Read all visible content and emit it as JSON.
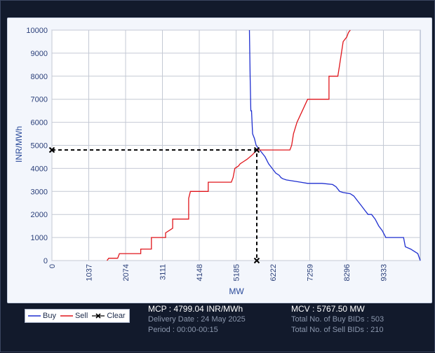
{
  "chart_data": {
    "type": "line",
    "xlabel": "MW",
    "ylabel": "INR/MWh",
    "xlim": [
      0,
      10370
    ],
    "ylim": [
      0,
      10000
    ],
    "x_ticks": [
      "0",
      "1037",
      "2074",
      "3111",
      "4148",
      "5185",
      "6222",
      "7259",
      "8296",
      "9333"
    ],
    "y_ticks": [
      "0",
      "1000",
      "2000",
      "3000",
      "4000",
      "5000",
      "6000",
      "7000",
      "8000",
      "9000",
      "10000"
    ],
    "grid": true,
    "legend_position": "bottom-left",
    "series": [
      {
        "name": "Buy",
        "color": "#1f2fd0",
        "points": [
          [
            5560,
            10000
          ],
          [
            5580,
            8000
          ],
          [
            5600,
            6500
          ],
          [
            5620,
            6500
          ],
          [
            5650,
            5500
          ],
          [
            5700,
            5300
          ],
          [
            5750,
            5000
          ],
          [
            5800,
            4900
          ],
          [
            5850,
            4800
          ],
          [
            5900,
            4700
          ],
          [
            6000,
            4500
          ],
          [
            6100,
            4200
          ],
          [
            6200,
            4000
          ],
          [
            6300,
            3800
          ],
          [
            6400,
            3700
          ],
          [
            6450,
            3600
          ],
          [
            6500,
            3550
          ],
          [
            6600,
            3500
          ],
          [
            6800,
            3450
          ],
          [
            7000,
            3400
          ],
          [
            7200,
            3350
          ],
          [
            7600,
            3350
          ],
          [
            7900,
            3300
          ],
          [
            8000,
            3200
          ],
          [
            8100,
            3000
          ],
          [
            8200,
            2950
          ],
          [
            8400,
            2900
          ],
          [
            8500,
            2800
          ],
          [
            8600,
            2600
          ],
          [
            8700,
            2400
          ],
          [
            8800,
            2200
          ],
          [
            8900,
            2000
          ],
          [
            9000,
            2000
          ],
          [
            9100,
            1800
          ],
          [
            9200,
            1500
          ],
          [
            9300,
            1300
          ],
          [
            9400,
            1000
          ],
          [
            9500,
            1000
          ],
          [
            9700,
            1000
          ],
          [
            9900,
            1000
          ],
          [
            9950,
            600
          ],
          [
            10100,
            500
          ],
          [
            10200,
            400
          ],
          [
            10300,
            300
          ],
          [
            10370,
            0
          ]
        ]
      },
      {
        "name": "Sell",
        "color": "#e0161c",
        "points": [
          [
            1550,
            0
          ],
          [
            1600,
            100
          ],
          [
            1850,
            100
          ],
          [
            1900,
            300
          ],
          [
            2500,
            300
          ],
          [
            2500,
            500
          ],
          [
            2800,
            500
          ],
          [
            2800,
            1000
          ],
          [
            3200,
            1000
          ],
          [
            3200,
            1200
          ],
          [
            3400,
            1400
          ],
          [
            3400,
            1800
          ],
          [
            3850,
            1800
          ],
          [
            3850,
            2700
          ],
          [
            3900,
            3000
          ],
          [
            4400,
            3000
          ],
          [
            4400,
            3400
          ],
          [
            5050,
            3400
          ],
          [
            5100,
            3600
          ],
          [
            5150,
            4000
          ],
          [
            5250,
            4100
          ],
          [
            5300,
            4200
          ],
          [
            5400,
            4300
          ],
          [
            5500,
            4400
          ],
          [
            5650,
            4600
          ],
          [
            5767.5,
            4799.04
          ],
          [
            6700,
            4800
          ],
          [
            6750,
            5000
          ],
          [
            6800,
            5500
          ],
          [
            6900,
            6000
          ],
          [
            7050,
            6500
          ],
          [
            7200,
            7000
          ],
          [
            7800,
            7000
          ],
          [
            7800,
            8000
          ],
          [
            8050,
            8000
          ],
          [
            8100,
            8500
          ],
          [
            8150,
            9000
          ],
          [
            8200,
            9500
          ],
          [
            8300,
            9700
          ],
          [
            8350,
            9900
          ],
          [
            8400,
            10000
          ]
        ]
      },
      {
        "name": "Clear",
        "color": "#000000",
        "points": [
          [
            0,
            4799.04
          ],
          [
            5767.5,
            4799.04
          ],
          [
            5767.5,
            0
          ]
        ]
      }
    ]
  },
  "info": {
    "mcp": "MCP : 4799.04 INR/MWh",
    "delivery_date": "Delivery Date : 24 May 2025",
    "period": "Period :  00:00-00:15",
    "mcv": "MCV : 5767.50 MW",
    "buy_bids": "Total No. of Buy BIDs : 503",
    "sell_bids": "Total No. of Sell BIDs : 210"
  },
  "legend": {
    "buy": "Buy",
    "sell": "Sell",
    "clear": "Clear"
  }
}
